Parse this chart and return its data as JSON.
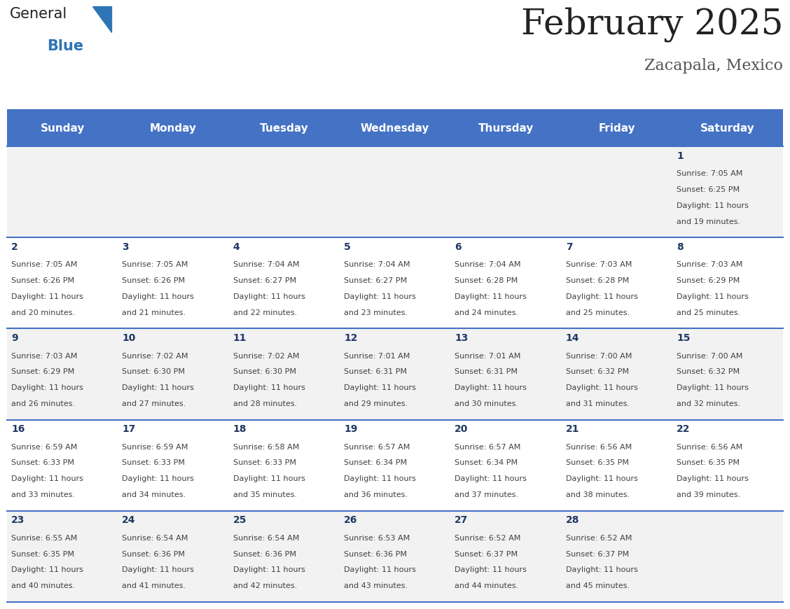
{
  "title": "February 2025",
  "subtitle": "Zacapala, Mexico",
  "header_bg": "#4472C4",
  "header_text_color": "#FFFFFF",
  "cell_bg_odd": "#F2F2F2",
  "cell_bg_even": "#FFFFFF",
  "day_num_color": "#1F3864",
  "info_text_color": "#404040",
  "border_color": "#4472C4",
  "days_of_week": [
    "Sunday",
    "Monday",
    "Tuesday",
    "Wednesday",
    "Thursday",
    "Friday",
    "Saturday"
  ],
  "calendar": [
    [
      null,
      null,
      null,
      null,
      null,
      null,
      {
        "day": 1,
        "sunrise": "7:05 AM",
        "sunset": "6:25 PM",
        "daylight_hours": 11,
        "daylight_minutes": 19
      }
    ],
    [
      {
        "day": 2,
        "sunrise": "7:05 AM",
        "sunset": "6:26 PM",
        "daylight_hours": 11,
        "daylight_minutes": 20
      },
      {
        "day": 3,
        "sunrise": "7:05 AM",
        "sunset": "6:26 PM",
        "daylight_hours": 11,
        "daylight_minutes": 21
      },
      {
        "day": 4,
        "sunrise": "7:04 AM",
        "sunset": "6:27 PM",
        "daylight_hours": 11,
        "daylight_minutes": 22
      },
      {
        "day": 5,
        "sunrise": "7:04 AM",
        "sunset": "6:27 PM",
        "daylight_hours": 11,
        "daylight_minutes": 23
      },
      {
        "day": 6,
        "sunrise": "7:04 AM",
        "sunset": "6:28 PM",
        "daylight_hours": 11,
        "daylight_minutes": 24
      },
      {
        "day": 7,
        "sunrise": "7:03 AM",
        "sunset": "6:28 PM",
        "daylight_hours": 11,
        "daylight_minutes": 25
      },
      {
        "day": 8,
        "sunrise": "7:03 AM",
        "sunset": "6:29 PM",
        "daylight_hours": 11,
        "daylight_minutes": 25
      }
    ],
    [
      {
        "day": 9,
        "sunrise": "7:03 AM",
        "sunset": "6:29 PM",
        "daylight_hours": 11,
        "daylight_minutes": 26
      },
      {
        "day": 10,
        "sunrise": "7:02 AM",
        "sunset": "6:30 PM",
        "daylight_hours": 11,
        "daylight_minutes": 27
      },
      {
        "day": 11,
        "sunrise": "7:02 AM",
        "sunset": "6:30 PM",
        "daylight_hours": 11,
        "daylight_minutes": 28
      },
      {
        "day": 12,
        "sunrise": "7:01 AM",
        "sunset": "6:31 PM",
        "daylight_hours": 11,
        "daylight_minutes": 29
      },
      {
        "day": 13,
        "sunrise": "7:01 AM",
        "sunset": "6:31 PM",
        "daylight_hours": 11,
        "daylight_minutes": 30
      },
      {
        "day": 14,
        "sunrise": "7:00 AM",
        "sunset": "6:32 PM",
        "daylight_hours": 11,
        "daylight_minutes": 31
      },
      {
        "day": 15,
        "sunrise": "7:00 AM",
        "sunset": "6:32 PM",
        "daylight_hours": 11,
        "daylight_minutes": 32
      }
    ],
    [
      {
        "day": 16,
        "sunrise": "6:59 AM",
        "sunset": "6:33 PM",
        "daylight_hours": 11,
        "daylight_minutes": 33
      },
      {
        "day": 17,
        "sunrise": "6:59 AM",
        "sunset": "6:33 PM",
        "daylight_hours": 11,
        "daylight_minutes": 34
      },
      {
        "day": 18,
        "sunrise": "6:58 AM",
        "sunset": "6:33 PM",
        "daylight_hours": 11,
        "daylight_minutes": 35
      },
      {
        "day": 19,
        "sunrise": "6:57 AM",
        "sunset": "6:34 PM",
        "daylight_hours": 11,
        "daylight_minutes": 36
      },
      {
        "day": 20,
        "sunrise": "6:57 AM",
        "sunset": "6:34 PM",
        "daylight_hours": 11,
        "daylight_minutes": 37
      },
      {
        "day": 21,
        "sunrise": "6:56 AM",
        "sunset": "6:35 PM",
        "daylight_hours": 11,
        "daylight_minutes": 38
      },
      {
        "day": 22,
        "sunrise": "6:56 AM",
        "sunset": "6:35 PM",
        "daylight_hours": 11,
        "daylight_minutes": 39
      }
    ],
    [
      {
        "day": 23,
        "sunrise": "6:55 AM",
        "sunset": "6:35 PM",
        "daylight_hours": 11,
        "daylight_minutes": 40
      },
      {
        "day": 24,
        "sunrise": "6:54 AM",
        "sunset": "6:36 PM",
        "daylight_hours": 11,
        "daylight_minutes": 41
      },
      {
        "day": 25,
        "sunrise": "6:54 AM",
        "sunset": "6:36 PM",
        "daylight_hours": 11,
        "daylight_minutes": 42
      },
      {
        "day": 26,
        "sunrise": "6:53 AM",
        "sunset": "6:36 PM",
        "daylight_hours": 11,
        "daylight_minutes": 43
      },
      {
        "day": 27,
        "sunrise": "6:52 AM",
        "sunset": "6:37 PM",
        "daylight_hours": 11,
        "daylight_minutes": 44
      },
      {
        "day": 28,
        "sunrise": "6:52 AM",
        "sunset": "6:37 PM",
        "daylight_hours": 11,
        "daylight_minutes": 45
      },
      null
    ]
  ],
  "logo_text1": "General",
  "logo_text2": "Blue",
  "logo_color1": "#222222",
  "logo_color2": "#2E75B6",
  "title_fontsize": 36,
  "subtitle_fontsize": 16,
  "header_fontsize": 11,
  "day_num_fontsize": 10,
  "info_fontsize": 8
}
